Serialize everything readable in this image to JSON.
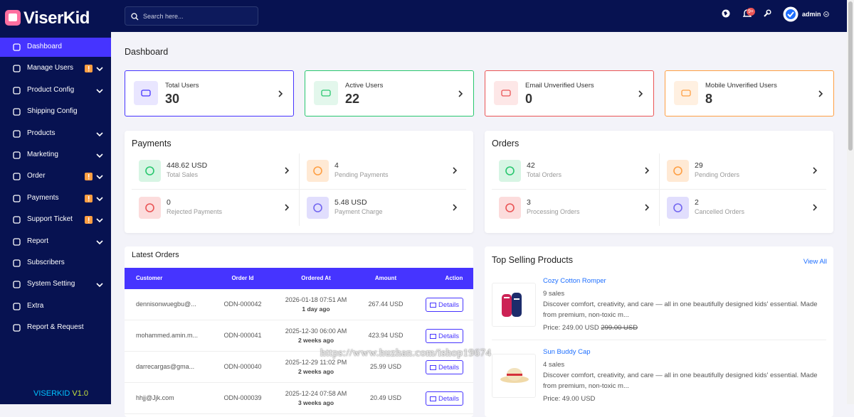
{
  "brand": "ViserKid",
  "sidebar": {
    "menu": [
      "Dashboard",
      "Manage Users",
      "Product Config",
      "Shipping Config",
      "Products",
      "Marketing",
      "Order",
      "Payments",
      "Support Ticket",
      "Report",
      "Subscribers",
      "System Setting",
      "Extra",
      "Report & Request"
    ],
    "footer_name": "VISERKID",
    "footer_version": "V1.0"
  },
  "topbar": {
    "search_placeholder": "Search here...",
    "notification_badge": "9+",
    "user": "admin"
  },
  "page_title": "Dashboard",
  "stats": [
    {
      "label": "Total Users",
      "value": 30
    },
    {
      "label": "Active Users",
      "value": 22
    },
    {
      "label": "Email Unverified Users",
      "value": 0
    },
    {
      "label": "Mobile Unverified Users",
      "value": 8
    }
  ],
  "payments": {
    "title": "Payments",
    "items": [
      {
        "value": "448.62 USD",
        "label": "Total Sales"
      },
      {
        "value": "4",
        "label": "Pending Payments"
      },
      {
        "value": "0",
        "label": "Rejected Payments"
      },
      {
        "value": "5.48 USD",
        "label": "Payment Charge"
      }
    ]
  },
  "orders": {
    "title": "Orders",
    "items": [
      {
        "value": "42",
        "label": "Total Orders"
      },
      {
        "value": "29",
        "label": "Pending Orders"
      },
      {
        "value": "3",
        "label": "Processing Orders"
      },
      {
        "value": "2",
        "label": "Cancelled Orders"
      }
    ]
  },
  "latest_orders": {
    "title": "Latest Orders",
    "columns": [
      "Customer",
      "Order Id",
      "Ordered At",
      "Amount",
      "Action"
    ],
    "rows": [
      {
        "customer": "dennisonwuegbu@...",
        "order_id": "ODN-000042",
        "date": "2026-01-18 07:51 AM",
        "ago": "1 day ago",
        "amount": "267.44 USD",
        "action": "Details"
      },
      {
        "customer": "mohammed.amin.m...",
        "order_id": "ODN-000041",
        "date": "2025-12-30 06:00 AM",
        "ago": "2 weeks ago",
        "amount": "423.94 USD",
        "action": "Details"
      },
      {
        "customer": "darrecargas@gma...",
        "order_id": "ODN-000040",
        "date": "2025-12-29 11:02 PM",
        "ago": "2 weeks ago",
        "amount": "25.99 USD",
        "action": "Details"
      },
      {
        "customer": "hhjj@Jjk.com",
        "order_id": "ODN-000039",
        "date": "2025-12-24 07:58 AM",
        "ago": "3 weeks ago",
        "amount": "20.49 USD",
        "action": "Details"
      }
    ]
  },
  "top_products": {
    "title": "Top Selling Products",
    "view_all": "View All",
    "items": [
      {
        "name": "Cozy Cotton Romper",
        "sales": "9 sales",
        "description": "Discover comfort, creativity, and care — all in one beautifully designed kids' essential. Made from premium, non-toxic m...",
        "price": "Price: 249.00 USD",
        "old_price": "299.00 USD"
      },
      {
        "name": "Sun Buddy Cap",
        "sales": "4 sales",
        "description": "Discover comfort, creativity, and care — all in one beautifully designed kids' essential. Made from premium, non-toxic m...",
        "price": "Price: 49.00 USD"
      }
    ]
  },
  "watermark": "https://www.huzhan.com/ishop19674"
}
